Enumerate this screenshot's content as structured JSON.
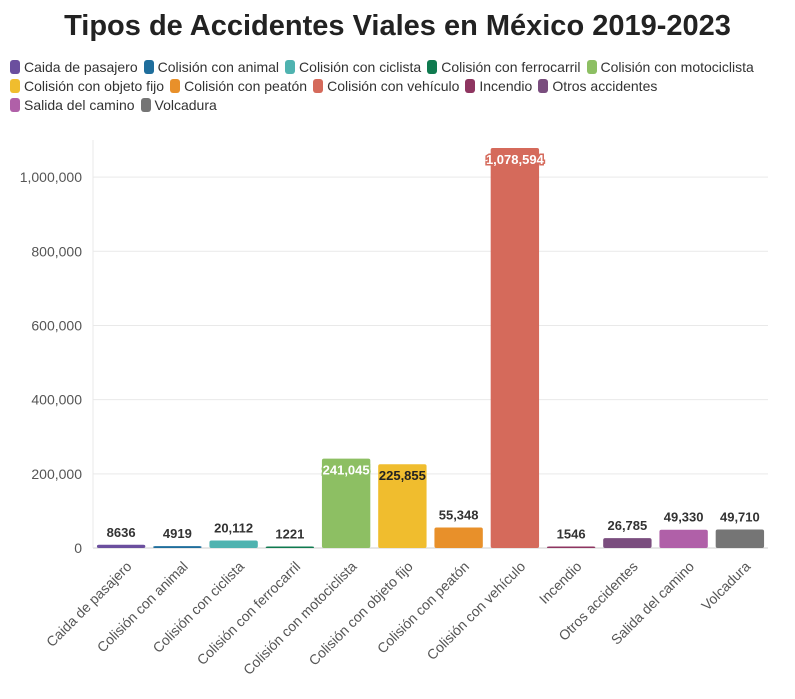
{
  "chart_data": {
    "type": "bar",
    "title": "Tipos de Accidentes Viales en México 2019-2023",
    "categories": [
      "Caida de pasajero",
      "Colisión con animal",
      "Colisión con ciclista",
      "Colisión con ferrocarril",
      "Colisión con motociclista",
      "Colisión con objeto fijo",
      "Colisión con peatón",
      "Colisión con vehículo",
      "Incendio",
      "Otros accidentes",
      "Salida del camino",
      "Volcadura"
    ],
    "values": [
      8636,
      4919,
      20112,
      1221,
      241045,
      225855,
      55348,
      1078594,
      1546,
      26785,
      49330,
      49710
    ],
    "value_labels": [
      "8636",
      "4919",
      "20,112",
      "1221",
      "241,045",
      "225,855",
      "55,348",
      "1,078,594",
      "1546",
      "26,785",
      "49,330",
      "49,710"
    ],
    "colors": [
      "#6b4f9e",
      "#1f6e9c",
      "#4fb3b0",
      "#0f7a4f",
      "#8dbf63",
      "#f0bd2e",
      "#e8902a",
      "#d56a5b",
      "#8e3560",
      "#7a4d7e",
      "#b060a8",
      "#757575"
    ],
    "yticks": [
      0,
      200000,
      400000,
      600000,
      800000,
      1000000
    ],
    "ytick_labels": [
      "0",
      "200,000",
      "400,000",
      "600,000",
      "800,000",
      "1,000,000"
    ],
    "ylim": [
      0,
      1100000
    ],
    "xlabel": "",
    "ylabel": "",
    "legend_position": "top",
    "grid": true
  }
}
